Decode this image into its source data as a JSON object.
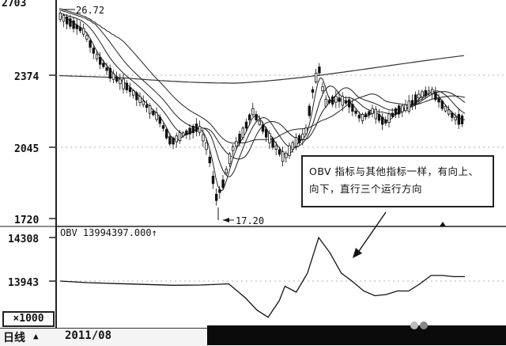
{
  "chart_data": [
    {
      "type": "candlestick",
      "title": "",
      "y_ticks": [
        "2703",
        "2374",
        "2045",
        "1720"
      ],
      "ylim": [
        1700,
        2720
      ],
      "annotations": {
        "high_label": "26.72",
        "low_label": "17.20",
        "note": "OBV 指标与其他指标一样，有向上、向下，直行三个运行方向"
      }
    },
    {
      "type": "line",
      "title": "OBV 13994397.000↑",
      "y_ticks": [
        "14308",
        "13943"
      ],
      "multiplier_label": "×1000",
      "series": [
        {
          "x": [
            0,
            10,
            20,
            30,
            40,
            50,
            60,
            66,
            70,
            74,
            78,
            80,
            84,
            88,
            92,
            96,
            100,
            104,
            108,
            112,
            116,
            120,
            124,
            128,
            132,
            136,
            140,
            144
          ],
          "values": [
            13943,
            13930,
            13922,
            13915,
            13908,
            13910,
            13920,
            13800,
            13700,
            13640,
            13780,
            13900,
            13850,
            14010,
            14308,
            14180,
            14010,
            13940,
            13860,
            13820,
            13830,
            13860,
            13860,
            13920,
            13990,
            13990,
            13980,
            13980
          ]
        }
      ]
    }
  ],
  "footer": {
    "period_label": "日线",
    "date_label": "2011/08"
  }
}
